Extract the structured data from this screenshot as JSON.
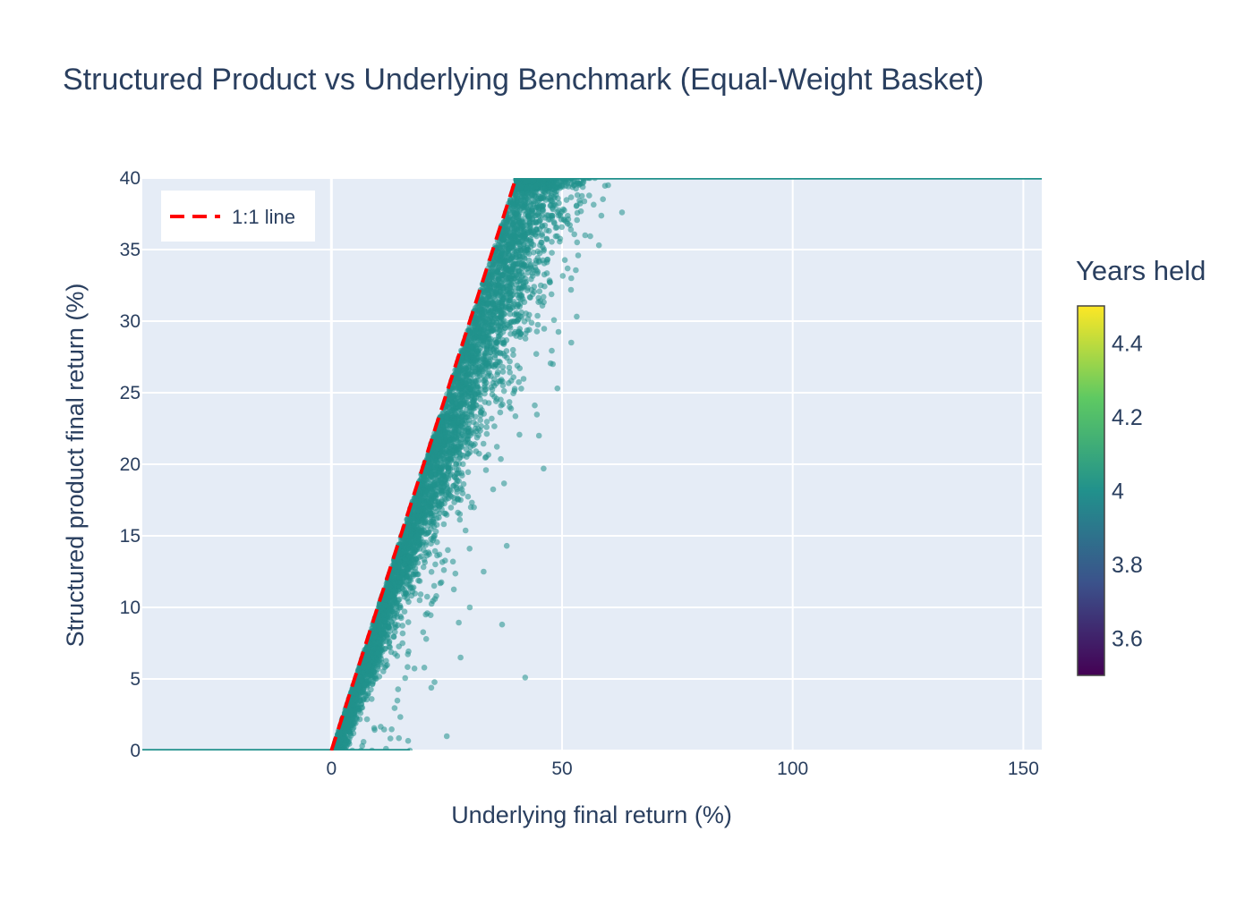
{
  "chart_data": {
    "type": "scatter",
    "title": "Structured Product vs Underlying Benchmark (Equal-Weight Basket)",
    "xlabel": "Underlying final return (%)",
    "ylabel": "Structured product final return (%)",
    "xlim": [
      -41,
      154
    ],
    "ylim": [
      0,
      40
    ],
    "x_ticks": [
      0,
      50,
      100,
      150
    ],
    "y_ticks": [
      0,
      5,
      10,
      15,
      20,
      25,
      30,
      35,
      40
    ],
    "grid": true,
    "background": "#e5ecf6",
    "point_color": "#21918c",
    "point_opacity": 0.55,
    "legend": {
      "placement": "top-left",
      "entries": [
        {
          "label": "1:1 line",
          "color": "#ff0000",
          "style": "dashed"
        }
      ]
    },
    "reference_line": {
      "name": "1:1 line",
      "x": [
        0,
        40
      ],
      "y": [
        0,
        40
      ],
      "color": "#ff0000",
      "dash": "dashed"
    },
    "series": [
      {
        "type": "scatter",
        "color_value": 4,
        "note_floor": "returns below 0 map to 0",
        "cap": 40,
        "points_sample": [
          [
            3,
            0.5
          ],
          [
            5,
            2
          ],
          [
            8,
            4
          ],
          [
            10,
            6
          ],
          [
            12,
            8
          ],
          [
            15,
            10
          ],
          [
            17,
            12
          ],
          [
            20,
            14
          ],
          [
            22,
            16
          ],
          [
            25,
            18
          ],
          [
            27,
            20
          ],
          [
            30,
            22
          ],
          [
            32,
            25
          ],
          [
            35,
            28
          ],
          [
            37,
            31
          ],
          [
            40,
            34
          ],
          [
            42,
            36
          ],
          [
            45,
            38
          ],
          [
            50,
            39.5
          ],
          [
            42,
            5.1
          ],
          [
            37,
            8.8
          ],
          [
            38,
            14.3
          ],
          [
            46,
            19.7
          ],
          [
            49,
            25.3
          ],
          [
            52,
            28.5
          ],
          [
            58,
            35.3
          ],
          [
            63,
            37.6
          ],
          [
            60,
            39.5
          ],
          [
            25,
            1
          ],
          [
            17,
            0
          ],
          [
            30,
            10
          ],
          [
            33,
            12.5
          ],
          [
            28,
            6.5
          ],
          [
            45,
            22
          ],
          [
            48,
            27
          ],
          [
            55,
            36
          ],
          [
            52,
            33
          ]
        ]
      },
      {
        "type": "line",
        "name": "floor-segment",
        "x": [
          -41,
          17
        ],
        "y": [
          0,
          0
        ]
      },
      {
        "type": "line",
        "name": "cap-segment",
        "x": [
          40,
          154
        ],
        "y": [
          40,
          40
        ]
      }
    ],
    "colorbar": {
      "title": "Years held",
      "ticks": [
        3.6,
        3.8,
        4,
        4.2,
        4.4
      ],
      "range": [
        3.5,
        4.5
      ],
      "colorscale": [
        "#440154",
        "#3b528b",
        "#21918c",
        "#5ec962",
        "#fde725"
      ]
    }
  }
}
